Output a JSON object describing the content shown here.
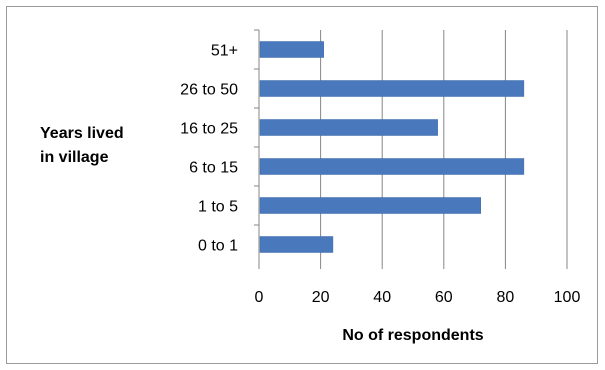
{
  "chart_data": {
    "type": "bar",
    "orientation": "horizontal",
    "categories": [
      "0 to 1",
      "1 to 5",
      "6 to 15",
      "16 to 25",
      "26 to 50",
      "51+"
    ],
    "values": [
      24,
      72,
      86,
      58,
      86,
      21
    ],
    "xlabel": "No of respondents",
    "ylabel_lines": [
      "Years lived",
      "in village"
    ],
    "xlim": [
      0,
      100
    ],
    "xticks": [
      "0",
      "20",
      "40",
      "60",
      "80",
      "100"
    ],
    "grid": "vertical",
    "legend": "none",
    "bar_color": "#4a78bd"
  }
}
